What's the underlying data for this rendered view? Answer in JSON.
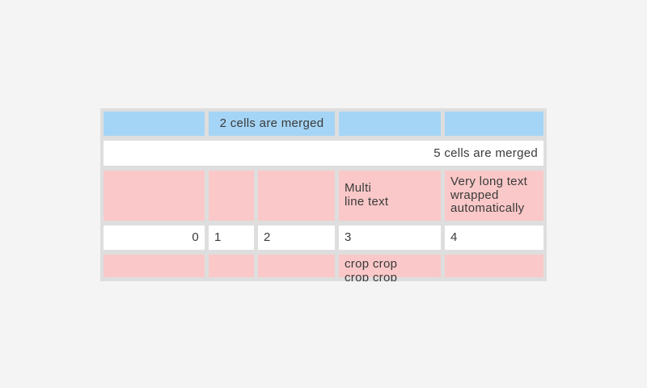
{
  "page": {
    "background_color": "#f4f4f4"
  },
  "table": {
    "description": "Table demo with merged, multiline, wrapped and cropped cells",
    "colors": {
      "frame": "#dedede",
      "blue_cell": "#a5d5f6",
      "pink_cell": "#fac8c8",
      "white_cell": "#ffffff",
      "text": "#3a3a3a"
    },
    "row1": {
      "merged_cell_label": "2 cells are merged"
    },
    "row2": {
      "merged_cell_label": "5 cells are merged"
    },
    "row3": {
      "multiline_cell_text": "Multi\nline text",
      "wrapped_cell_text": "Very long text wrapped automatically"
    },
    "row4": {
      "cell_values": [
        "0",
        "1",
        "2",
        "3",
        "4"
      ]
    },
    "row5": {
      "cropped_cell_text": "crop crop crop crop"
    }
  }
}
